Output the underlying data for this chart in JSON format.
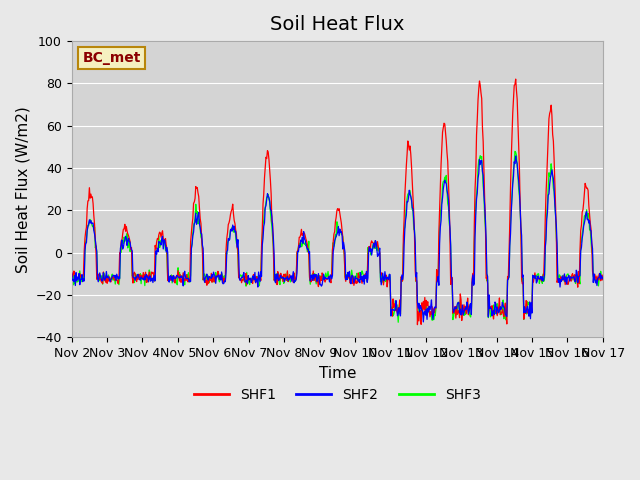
{
  "title": "Soil Heat Flux",
  "ylabel": "Soil Heat Flux (W/m2)",
  "xlabel": "Time",
  "ylim": [
    -40,
    100
  ],
  "background_color": "#e8e8e8",
  "plot_bg_color": "#d4d4d4",
  "series": [
    "SHF1",
    "SHF2",
    "SHF3"
  ],
  "colors": [
    "red",
    "blue",
    "lime"
  ],
  "legend_label": "BC_met",
  "xtick_labels": [
    "Nov 2",
    "Nov 3",
    "Nov 4",
    "Nov 5",
    "Nov 6",
    "Nov 7",
    "Nov 8",
    "Nov 9",
    "Nov 10",
    "Nov 11",
    "Nov 12",
    "Nov 13",
    "Nov 14",
    "Nov 15",
    "Nov 16",
    "Nov 17"
  ],
  "ytick_values": [
    -40,
    -20,
    0,
    20,
    40,
    60,
    80,
    100
  ],
  "title_fontsize": 14,
  "axis_label_fontsize": 11,
  "tick_fontsize": 9,
  "legend_fontsize": 10,
  "n_days": 15,
  "pts_per_day": 48,
  "day_amps": [
    28,
    12,
    9,
    30,
    20,
    48,
    10,
    20,
    5,
    52,
    62,
    80,
    82,
    68,
    32
  ],
  "night_base": -12,
  "deep_trough_days": [
    9,
    10,
    11,
    12
  ],
  "deep_trough_extra": 15
}
